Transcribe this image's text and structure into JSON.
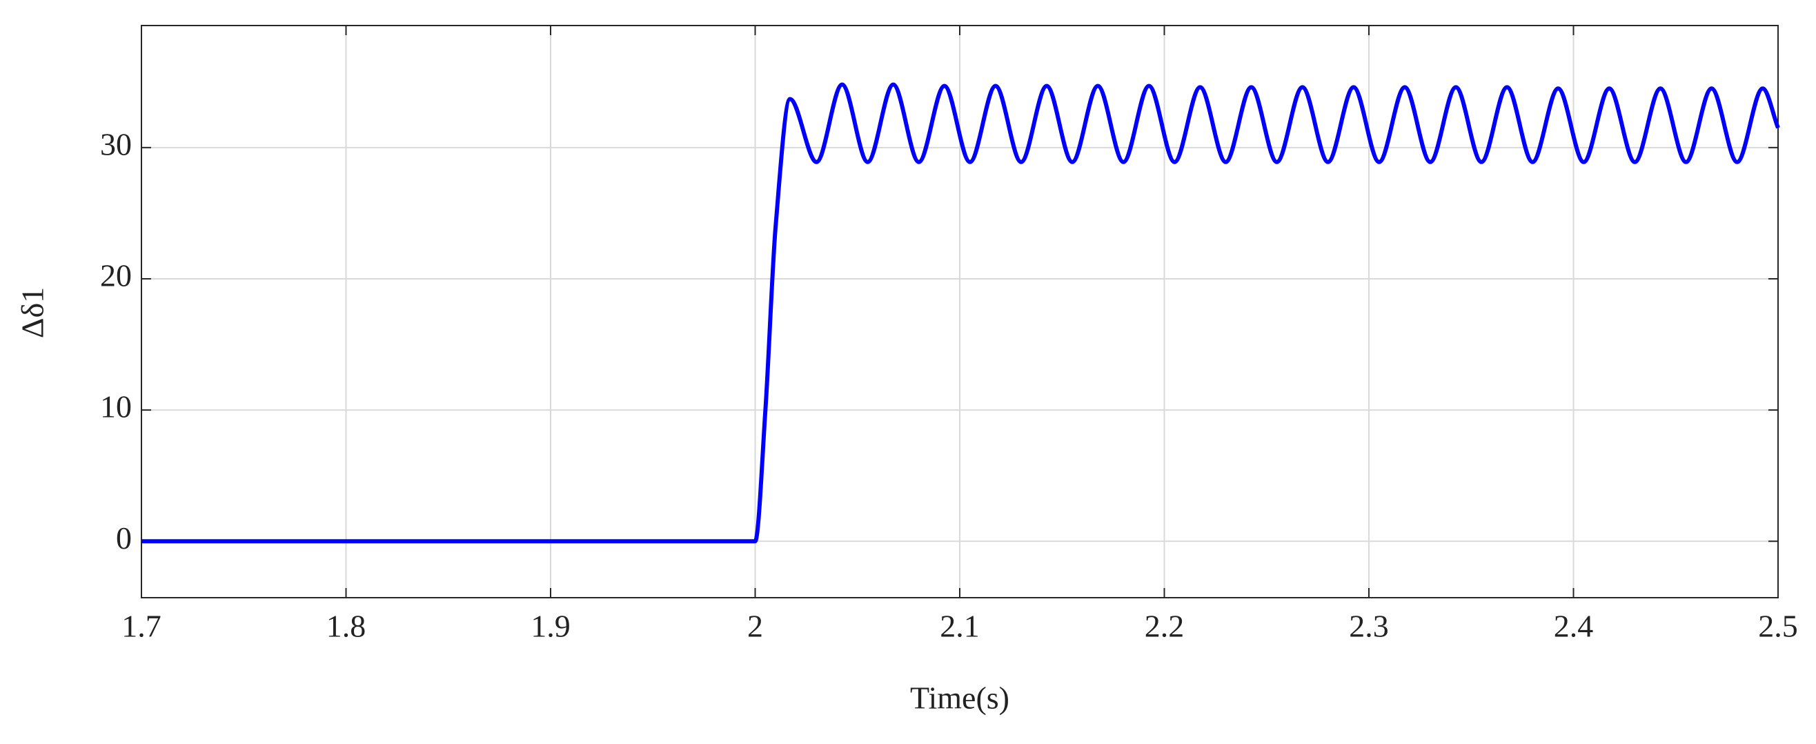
{
  "chart_data": {
    "type": "line",
    "x_label": "Time(s)",
    "y_label": "Δδ1",
    "x": [
      1.7,
      2.0,
      2.005,
      2.01,
      2.017,
      2.03,
      2.0425,
      2.055,
      2.0675,
      2.08,
      2.0925,
      2.105,
      2.1175,
      2.13,
      2.1425,
      2.155,
      2.1675,
      2.18,
      2.1925,
      2.205,
      2.2175,
      2.23,
      2.2425,
      2.255,
      2.2675,
      2.28,
      2.2925,
      2.305,
      2.3175,
      2.33,
      2.3425,
      2.355,
      2.3675,
      2.38,
      2.3925,
      2.405,
      2.4175,
      2.43,
      2.4425,
      2.455,
      2.4675,
      2.48,
      2.4925,
      2.5
    ],
    "series": [
      {
        "name": "Δδ1",
        "color": "#0000ff",
        "values": [
          0,
          0,
          10,
          24,
          33.7,
          28.9,
          34.8,
          28.9,
          34.8,
          28.9,
          34.7,
          28.9,
          34.7,
          28.9,
          34.7,
          28.9,
          34.7,
          28.9,
          34.7,
          28.9,
          34.6,
          28.9,
          34.6,
          28.9,
          34.6,
          28.9,
          34.6,
          28.9,
          34.6,
          28.9,
          34.6,
          28.9,
          34.6,
          28.9,
          34.5,
          28.9,
          34.5,
          28.9,
          34.5,
          28.9,
          34.5,
          28.9,
          34.5,
          31.5
        ]
      }
    ],
    "xlim": [
      1.7,
      2.5
    ],
    "xticks": [
      1.7,
      1.8,
      1.9,
      2,
      2.1,
      2.2,
      2.3,
      2.4,
      2.5
    ],
    "ylim": [
      -4.3,
      39.3
    ],
    "yticks": [
      0,
      10,
      20,
      30
    ],
    "grid": true
  }
}
